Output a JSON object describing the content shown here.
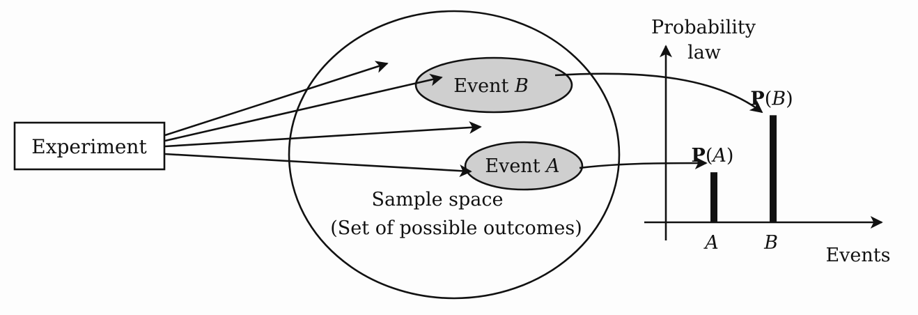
{
  "experiment": {
    "label": "Experiment"
  },
  "sample_space": {
    "title": "Sample space",
    "subtitle": "(Set of possible outcomes)"
  },
  "events": {
    "b": {
      "word": "Event",
      "letter": "B"
    },
    "a": {
      "word": "Event",
      "letter": "A"
    }
  },
  "probability_law": {
    "axis_title_line1": "Probability",
    "axis_title_line2": "law",
    "x_axis_title": "Events",
    "bars": [
      {
        "event": "A",
        "prob_prefix": "P",
        "prob_open": "(",
        "prob_close": ")",
        "value": 0.43
      },
      {
        "event": "B",
        "prob_prefix": "P",
        "prob_open": "(",
        "prob_close": ")",
        "value": 0.92
      }
    ]
  },
  "colors": {
    "ink": "#111111",
    "event_fill": "#cfcfcf",
    "background": "#fdfdfd"
  }
}
